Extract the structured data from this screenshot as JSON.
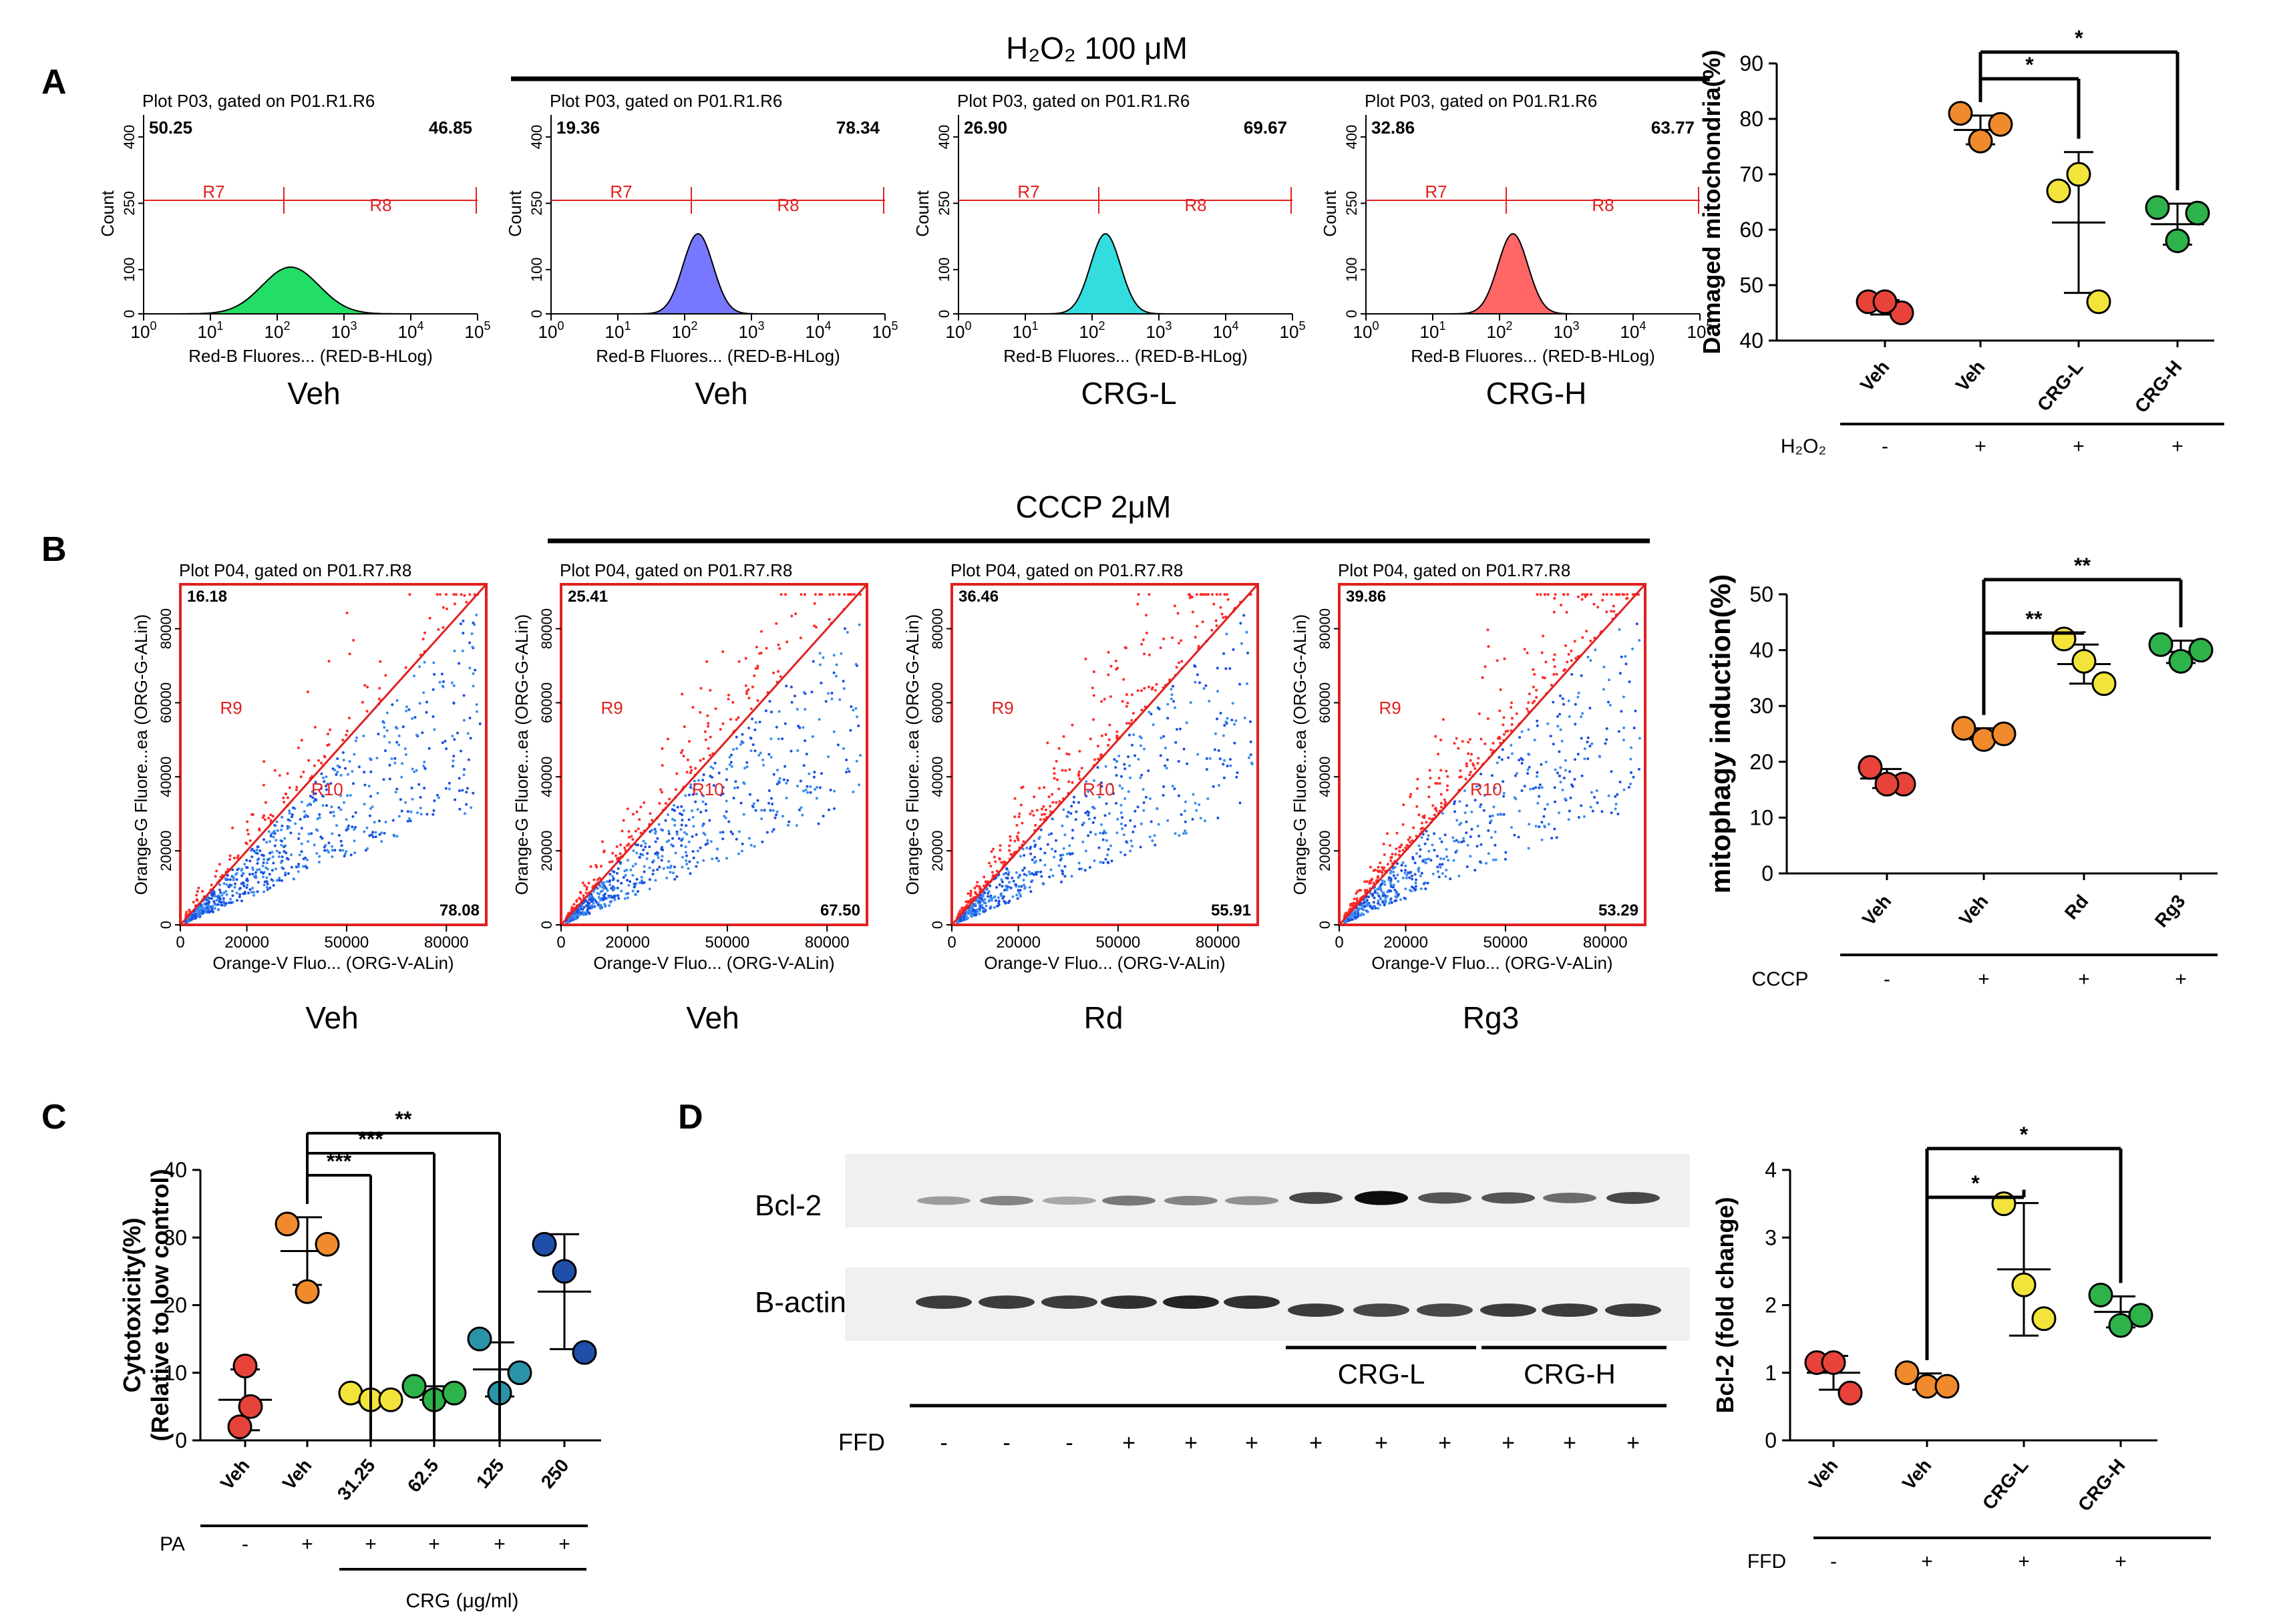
{
  "figure": {
    "panel_labels": [
      "A",
      "B",
      "C",
      "D"
    ],
    "panelA": {
      "treatment_title": "H₂O₂ 100 μM",
      "histograms": [
        {
          "header": "Plot P03, gated on P01.R1.R6",
          "left_pct": "50.25",
          "right_pct": "46.85",
          "label": "Veh",
          "color": "#22dd66"
        },
        {
          "header": "Plot P03, gated on P01.R1.R6",
          "left_pct": "19.36",
          "right_pct": "78.34",
          "label": "Veh",
          "color": "#7777ff"
        },
        {
          "header": "Plot P03, gated on P01.R1.R6",
          "left_pct": "26.90",
          "right_pct": "69.67",
          "label": "CRG-L",
          "color": "#33dddd"
        },
        {
          "header": "Plot P03, gated on P01.R1.R6",
          "left_pct": "32.86",
          "right_pct": "63.77",
          "label": "CRG-H",
          "color": "#ff6666"
        }
      ],
      "hist_ylabel": "Count",
      "hist_xlabel": "Red-B Fluores... (RED-B-HLog)",
      "gate_left": "R7",
      "gate_right": "R8",
      "y_ticks": [
        "0",
        "100",
        "250",
        "400"
      ],
      "x_tick_bases": [
        "10",
        "10",
        "10",
        "10",
        "10",
        "10"
      ],
      "x_tick_exps": [
        "0",
        "1",
        "2",
        "3",
        "4",
        "5"
      ]
    },
    "panelB": {
      "treatment_title": "CCCP 2μM",
      "scatters": [
        {
          "header": "Plot P04, gated on P01.R7.R8",
          "upper_pct": "16.18",
          "lower_pct": "78.08",
          "label": "Veh"
        },
        {
          "header": "Plot P04, gated on P01.R7.R8",
          "upper_pct": "25.41",
          "lower_pct": "67.50",
          "label": "Veh"
        },
        {
          "header": "Plot P04, gated on P01.R7.R8",
          "upper_pct": "36.46",
          "lower_pct": "55.91",
          "label": "Rd"
        },
        {
          "header": "Plot P04, gated on P01.R7.R8",
          "upper_pct": "39.86",
          "lower_pct": "53.29",
          "label": "Rg3"
        }
      ],
      "scatter_ylabel": "Orange-G Fluore...ea (ORG-G-ALin)",
      "scatter_xlabel": "Orange-V Fluo... (ORG-V-ALin)",
      "region_upper": "R9",
      "region_lower": "R10",
      "y_ticks": [
        "0",
        "20000",
        "40000",
        "60000",
        "80000"
      ],
      "x_ticks": [
        "0",
        "20000",
        "50000",
        "80000"
      ]
    },
    "panelD": {
      "row_labels": [
        "Bcl-2",
        "B-actin"
      ],
      "group_labels": [
        "CRG-L",
        "CRG-H"
      ],
      "treatment_label": "FFD",
      "lane_signs": [
        "-",
        "-",
        "-",
        "+",
        "+",
        "+",
        "+",
        "+",
        "+",
        "+",
        "+",
        "+"
      ],
      "bcl2_band_intensity": [
        0.35,
        0.45,
        0.3,
        0.5,
        0.45,
        0.4,
        0.7,
        0.95,
        0.65,
        0.65,
        0.55,
        0.7
      ],
      "actin_band_intensity": [
        0.75,
        0.75,
        0.75,
        0.8,
        0.85,
        0.8,
        0.75,
        0.7,
        0.7,
        0.75,
        0.75,
        0.75
      ]
    }
  },
  "chart_data": [
    {
      "type": "scatter",
      "id": "A",
      "ylabel": "Damaged mitochondria(%)",
      "ylim": [
        40,
        90
      ],
      "yticks": [
        "40",
        "50",
        "60",
        "70",
        "80",
        "90"
      ],
      "categories": [
        "Veh",
        "Veh",
        "CRG-L",
        "CRG-H"
      ],
      "treatment": "H₂O₂",
      "signs": [
        "-",
        "+",
        "+",
        "+"
      ],
      "colors": [
        "#e8433a",
        "#f08a2c",
        "#f2e43a",
        "#2db34a"
      ],
      "points": [
        [
          47,
          45,
          47
        ],
        [
          81,
          76,
          79
        ],
        [
          67,
          70,
          47
        ],
        [
          64,
          58,
          63
        ]
      ],
      "means": [
        46,
        78,
        61.3,
        61
      ],
      "sds": [
        1.3,
        2.6,
        12.7,
        3.7
      ],
      "sig": [
        {
          "from": 1,
          "to": 2,
          "label": "*"
        },
        {
          "from": 1,
          "to": 3,
          "label": "*"
        }
      ]
    },
    {
      "type": "scatter",
      "id": "B",
      "ylabel": "mitophagy induction(%)",
      "ylim": [
        0,
        50
      ],
      "yticks": [
        "0",
        "10",
        "20",
        "30",
        "40",
        "50"
      ],
      "categories": [
        "Veh",
        "Veh",
        "Rd",
        "Rg3"
      ],
      "treatment": "CCCP",
      "signs": [
        "-",
        "+",
        "+",
        "+"
      ],
      "colors": [
        "#e8433a",
        "#f08a2c",
        "#f2e43a",
        "#2db34a"
      ],
      "points": [
        [
          19,
          16,
          16
        ],
        [
          26,
          24,
          25
        ],
        [
          42,
          38,
          34
        ],
        [
          41,
          38,
          40
        ]
      ],
      "means": [
        17,
        25,
        37.5,
        39.7
      ],
      "sds": [
        1.7,
        1,
        3.5,
        2
      ],
      "sig": [
        {
          "from": 1,
          "to": 2,
          "label": "**"
        },
        {
          "from": 1,
          "to": 3,
          "label": "**"
        }
      ]
    },
    {
      "type": "scatter",
      "id": "C",
      "ylabel": "Cytotoxicity(%)",
      "ylabel2": "(Relative to low control)",
      "ylim": [
        0,
        40
      ],
      "yticks": [
        "0",
        "10",
        "20",
        "30",
        "40"
      ],
      "categories": [
        "Veh",
        "Veh",
        "31.25",
        "62.5",
        "125",
        "250"
      ],
      "treatment": "PA",
      "signs": [
        "-",
        "+",
        "+",
        "+",
        "+",
        "+"
      ],
      "group_label": "CRG (μg/ml)",
      "colors": [
        "#e8433a",
        "#f08a2c",
        "#f2e43a",
        "#2db34a",
        "#2a93a8",
        "#1f4fa8"
      ],
      "points": [
        [
          11,
          2,
          5
        ],
        [
          32,
          22,
          29
        ],
        [
          7,
          6,
          6
        ],
        [
          8,
          6,
          7
        ],
        [
          15,
          7,
          10
        ],
        [
          29,
          25,
          13
        ]
      ],
      "means": [
        6,
        28,
        6.2,
        7,
        10.5,
        22
      ],
      "sds": [
        4.5,
        5,
        0.6,
        1,
        4,
        8.5
      ],
      "sig": [
        {
          "from": 1,
          "to": 2,
          "label": "***"
        },
        {
          "from": 1,
          "to": 3,
          "label": "***"
        },
        {
          "from": 1,
          "to": 4,
          "label": "**"
        }
      ]
    },
    {
      "type": "scatter",
      "id": "D",
      "ylabel": "Bcl-2 (fold change)",
      "ylim": [
        0,
        4
      ],
      "yticks": [
        "0",
        "1",
        "2",
        "3",
        "4"
      ],
      "categories": [
        "Veh",
        "Veh",
        "CRG-L",
        "CRG-H"
      ],
      "treatment": "FFD",
      "signs": [
        "-",
        "+",
        "+",
        "+"
      ],
      "colors": [
        "#e8433a",
        "#f08a2c",
        "#f2e43a",
        "#2db34a"
      ],
      "points": [
        [
          1.15,
          0.7,
          1.15
        ],
        [
          1.0,
          0.8,
          0.8
        ],
        [
          3.5,
          2.3,
          1.8
        ],
        [
          2.15,
          1.7,
          1.85
        ]
      ],
      "means": [
        1.0,
        0.87,
        2.53,
        1.9
      ],
      "sds": [
        0.25,
        0.12,
        0.98,
        0.23
      ],
      "sig": [
        {
          "from": 1,
          "to": 2,
          "label": "*"
        },
        {
          "from": 1,
          "to": 3,
          "label": "*"
        }
      ]
    }
  ]
}
